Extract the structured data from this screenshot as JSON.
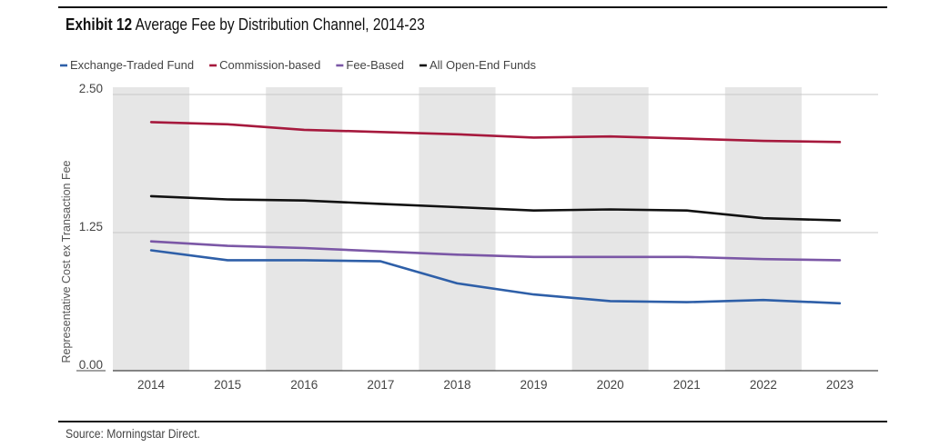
{
  "header": {
    "exhibit_label": "Exhibit 12",
    "title": "Average Fee by Distribution Channel, 2014-23"
  },
  "footer": {
    "source": "Source: Morningstar Direct."
  },
  "colors": {
    "band": "#e6e6e6",
    "grid": "#c8c8c8",
    "axis": "#444444",
    "text": "#444444"
  },
  "chart_data": {
    "type": "line",
    "title": "Average Fee by Distribution Channel, 2014-23",
    "xlabel": "",
    "ylabel": "Representative Cost ex Transaction Fee",
    "categories": [
      "2014",
      "2015",
      "2016",
      "2017",
      "2018",
      "2019",
      "2020",
      "2021",
      "2022",
      "2023"
    ],
    "ylim": [
      0,
      2.5
    ],
    "yticks": [
      0,
      1.25,
      2.5
    ],
    "ytick_labels": [
      "0.00",
      "1.25",
      "2.50"
    ],
    "legend_position": "top-left",
    "alternating_bands": true,
    "series": [
      {
        "name": "Exchange-Traded Fund",
        "color": "#2e5fa8",
        "values": [
          1.09,
          1.0,
          1.0,
          0.99,
          0.79,
          0.69,
          0.63,
          0.62,
          0.64,
          0.61
        ]
      },
      {
        "name": "Commission-based",
        "color": "#a6193d",
        "values": [
          2.25,
          2.23,
          2.18,
          2.16,
          2.14,
          2.11,
          2.12,
          2.1,
          2.08,
          2.07
        ]
      },
      {
        "name": "Fee-Based",
        "color": "#7b57a6",
        "values": [
          1.17,
          1.13,
          1.11,
          1.08,
          1.05,
          1.03,
          1.03,
          1.03,
          1.01,
          1.0
        ]
      },
      {
        "name": "All Open-End Funds",
        "color": "#111111",
        "values": [
          1.58,
          1.55,
          1.54,
          1.51,
          1.48,
          1.45,
          1.46,
          1.45,
          1.38,
          1.36
        ]
      }
    ]
  }
}
